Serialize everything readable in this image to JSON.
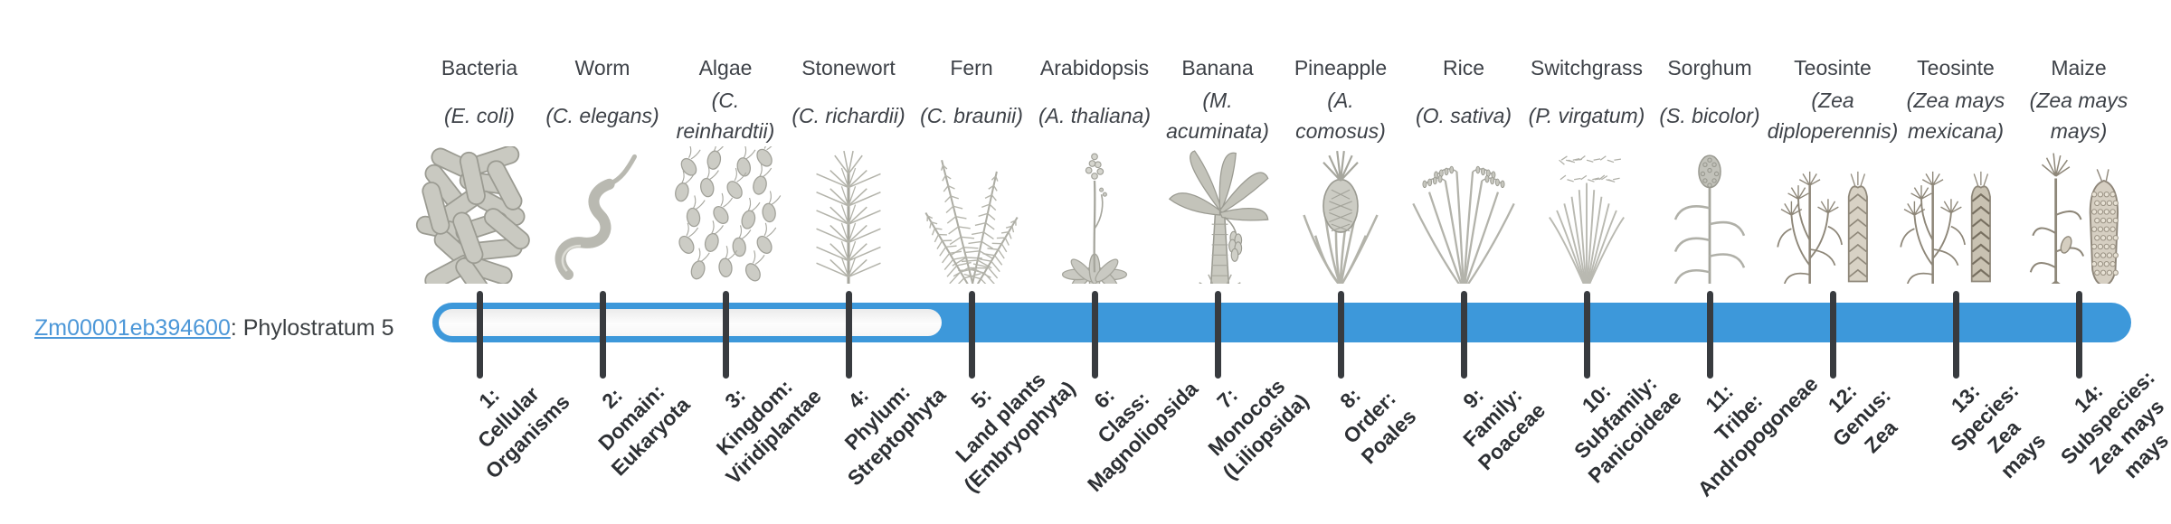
{
  "page": {
    "background": "#ffffff"
  },
  "gene": {
    "id": "Zm00001eb394600",
    "annotation": ": Phylostratum 5"
  },
  "timeline": {
    "bar_color": "#3d98da",
    "track_color": "#f4f4f4",
    "tick_color": "#383b3f",
    "link_color": "#4c97d8",
    "phylostratum_count": 14,
    "gene_phylostratum": 5,
    "fill_starts_at_phylostratum": 5
  },
  "organisms": [
    {
      "common": "Bacteria",
      "scientific": "(E. coli)",
      "icon": "bacteria-illustration"
    },
    {
      "common": "Worm",
      "scientific": "(C. elegans)",
      "icon": "worm-illustration"
    },
    {
      "common": "Algae",
      "scientific": "(C. reinhardtii)",
      "icon": "algae-illustration"
    },
    {
      "common": "Stonewort",
      "scientific": "(C. richardii)",
      "icon": "stonewort-illustration"
    },
    {
      "common": "Fern",
      "scientific": "(C. braunii)",
      "icon": "fern-illustration"
    },
    {
      "common": "Arabidopsis",
      "scientific": "(A. thaliana)",
      "icon": "arabidopsis-illustration"
    },
    {
      "common": "Banana",
      "scientific": "(M. acuminata)",
      "icon": "banana-illustration"
    },
    {
      "common": "Pineapple",
      "scientific": "(A. comosus)",
      "icon": "pineapple-illustration"
    },
    {
      "common": "Rice",
      "scientific": "(O. sativa)",
      "icon": "rice-illustration"
    },
    {
      "common": "Switchgrass",
      "scientific": "(P. virgatum)",
      "icon": "switchgrass-illustration"
    },
    {
      "common": "Sorghum",
      "scientific": "(S. bicolor)",
      "icon": "sorghum-illustration"
    },
    {
      "common": "Teosinte",
      "scientific": "(Zea diploperennis)",
      "icon": "teosinte-diploperennis-illustration"
    },
    {
      "common": "Teosinte",
      "scientific": "(Zea mays mexicana)",
      "icon": "teosinte-mexicana-illustration"
    },
    {
      "common": "Maize",
      "scientific": "(Zea mays mays)",
      "icon": "maize-illustration"
    }
  ],
  "phylostrata": [
    {
      "label": "1:\nCellular\nOrganisms"
    },
    {
      "label": "2:\nDomain:\nEukaryota"
    },
    {
      "label": "3:\nKingdom:\nViridiplantae"
    },
    {
      "label": "4:\nPhylum:\nStreptophyta"
    },
    {
      "label": "5:\nLand plants\n(Embryophyta)"
    },
    {
      "label": "6:\nClass:\nMagnoliopsida"
    },
    {
      "label": "7:\nMonocots\n(Liliopsida)"
    },
    {
      "label": "8:\nOrder:\nPoales"
    },
    {
      "label": "9:\nFamily:\nPoaceae"
    },
    {
      "label": "10:\nSubfamily:\nPanicoideae"
    },
    {
      "label": "11:\nTribe:\nAndropogoneae"
    },
    {
      "label": "12:\nGenus:\nZea"
    },
    {
      "label": "13:\nSpecies:\nZea\nmays"
    },
    {
      "label": "14:\nSubspecies:\nZea mays\nmays"
    }
  ]
}
